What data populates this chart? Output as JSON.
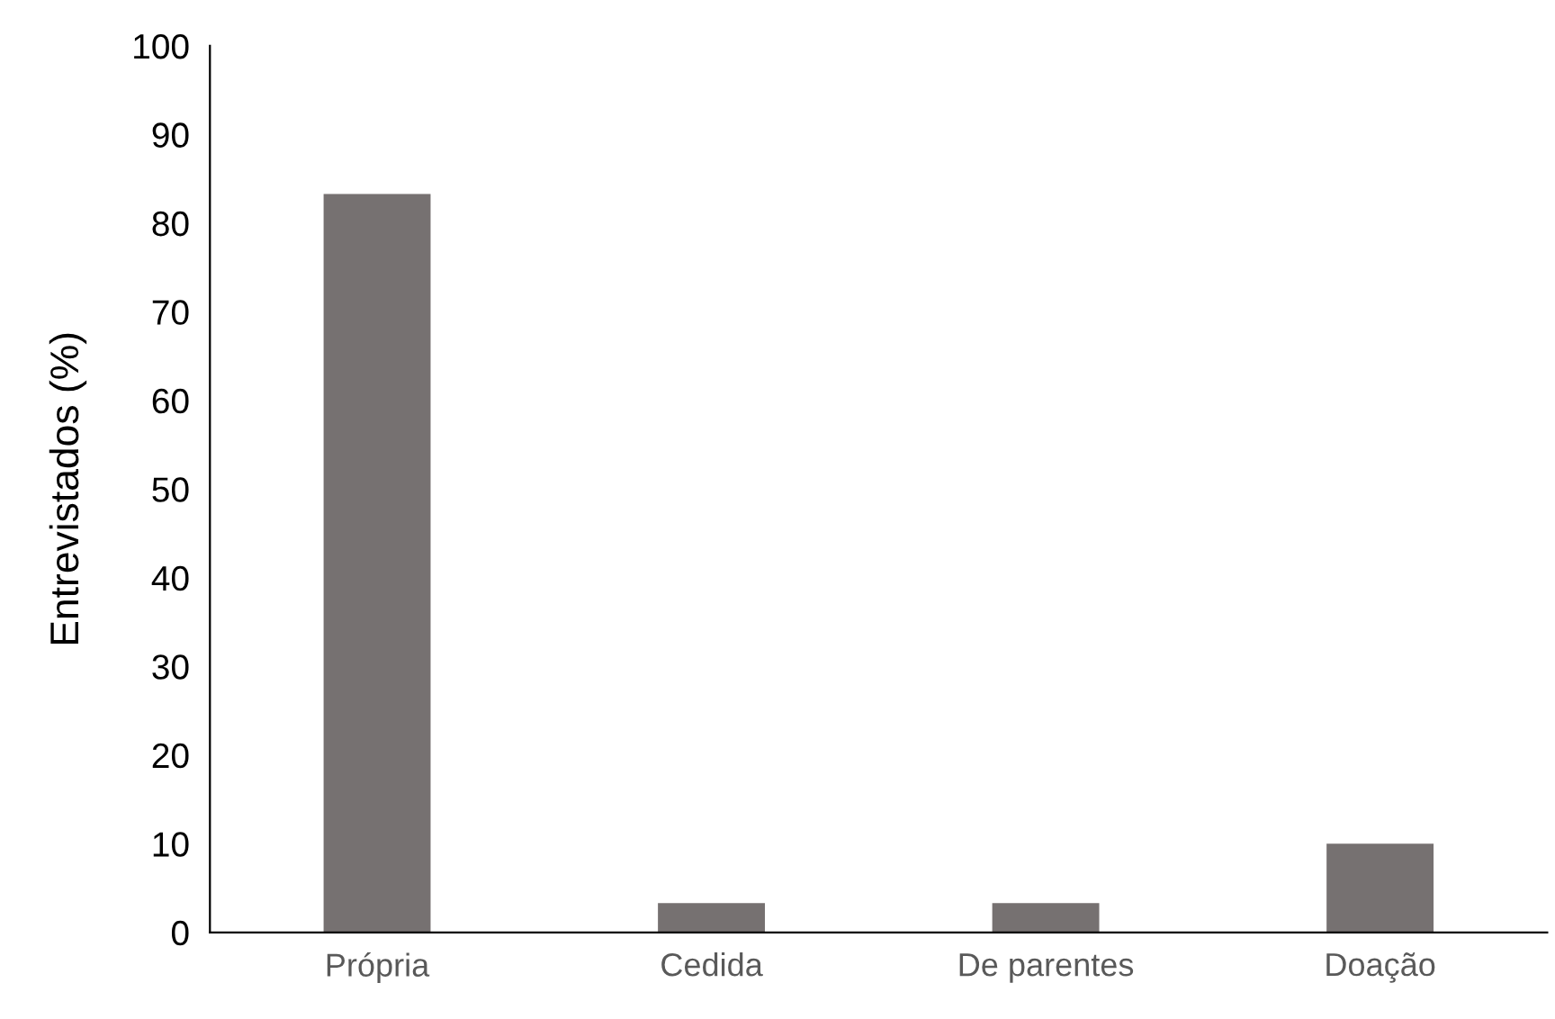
{
  "chart_data": {
    "type": "bar",
    "ylabel": "Entrevistados (%)",
    "categories": [
      "Própria",
      "Cedida",
      "De parentes",
      "Doação"
    ],
    "values": [
      83.3,
      3.3,
      3.3,
      10.0
    ],
    "color": "#767171",
    "ylim": [
      0,
      100
    ],
    "yticks": [
      0,
      10,
      20,
      30,
      40,
      50,
      60,
      70,
      80,
      90,
      100
    ],
    "grid": false,
    "legend": false
  }
}
